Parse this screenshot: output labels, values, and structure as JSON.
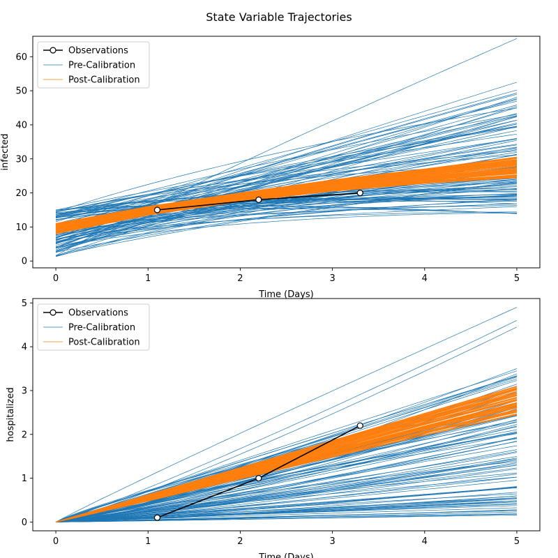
{
  "figure": {
    "title": "State Variable Trajectories"
  },
  "colors": {
    "observations": "#000000",
    "pre_calibration": "#1f77b4",
    "post_calibration": "#ff7f0e",
    "frame": "#000000",
    "legend_border": "#cccccc"
  },
  "chart_data": [
    {
      "type": "line",
      "title": "",
      "xlabel": "Time (Days)",
      "ylabel": "infected",
      "xlim": [
        -0.25,
        5.25
      ],
      "ylim": [
        -2,
        66
      ],
      "xticks": [
        0,
        1,
        2,
        3,
        4,
        5
      ],
      "yticks": [
        0,
        10,
        20,
        30,
        40,
        50,
        60
      ],
      "grid": false,
      "legend_position": "top-left",
      "legend": [
        "Observations",
        "Pre-Calibration",
        "Post-Calibration"
      ],
      "observations": {
        "name": "Observations",
        "x": [
          1.1,
          2.2,
          3.3
        ],
        "y": [
          15,
          18,
          20
        ]
      },
      "pre_calibration": {
        "name": "Pre-Calibration",
        "x": [
          0,
          1,
          2,
          3,
          4,
          5
        ],
        "ensemble_range_at_x": {
          "0": [
            1.3,
            15.0
          ],
          "5": [
            10.0,
            63.3
          ]
        },
        "ensemble_size_estimate": 100
      },
      "post_calibration": {
        "name": "Post-Calibration",
        "x": [
          0,
          1,
          2,
          3,
          4,
          5
        ],
        "band_lower": [
          8,
          13.5,
          17.5,
          20.5,
          22.8,
          24.5
        ],
        "band_upper": [
          11,
          16,
          20,
          23.8,
          27,
          30.5
        ]
      }
    },
    {
      "type": "line",
      "title": "",
      "xlabel": "Time (Days)",
      "ylabel": "hospitalized",
      "xlim": [
        -0.25,
        5.25
      ],
      "ylim": [
        -0.2,
        5.1
      ],
      "xticks": [
        0,
        1,
        2,
        3,
        4,
        5
      ],
      "yticks": [
        0,
        1,
        2,
        3,
        4,
        5
      ],
      "grid": false,
      "legend_position": "top-left",
      "legend": [
        "Observations",
        "Pre-Calibration",
        "Post-Calibration"
      ],
      "observations": {
        "name": "Observations",
        "x": [
          1.1,
          2.2,
          3.3
        ],
        "y": [
          0.1,
          1.0,
          2.2
        ]
      },
      "pre_calibration": {
        "name": "Pre-Calibration",
        "x": [
          0,
          1,
          2,
          3,
          4,
          5
        ],
        "ensemble_range_at_x": {
          "0": [
            0,
            0
          ],
          "5": [
            0.15,
            4.9
          ]
        },
        "ensemble_size_estimate": 100
      },
      "post_calibration": {
        "name": "Post-Calibration",
        "x": [
          0,
          1,
          2,
          3,
          4,
          5
        ],
        "band_lower": [
          0,
          0.48,
          0.98,
          1.48,
          1.98,
          2.45
        ],
        "band_upper": [
          0,
          0.62,
          1.24,
          1.86,
          2.48,
          3.1
        ]
      }
    }
  ]
}
